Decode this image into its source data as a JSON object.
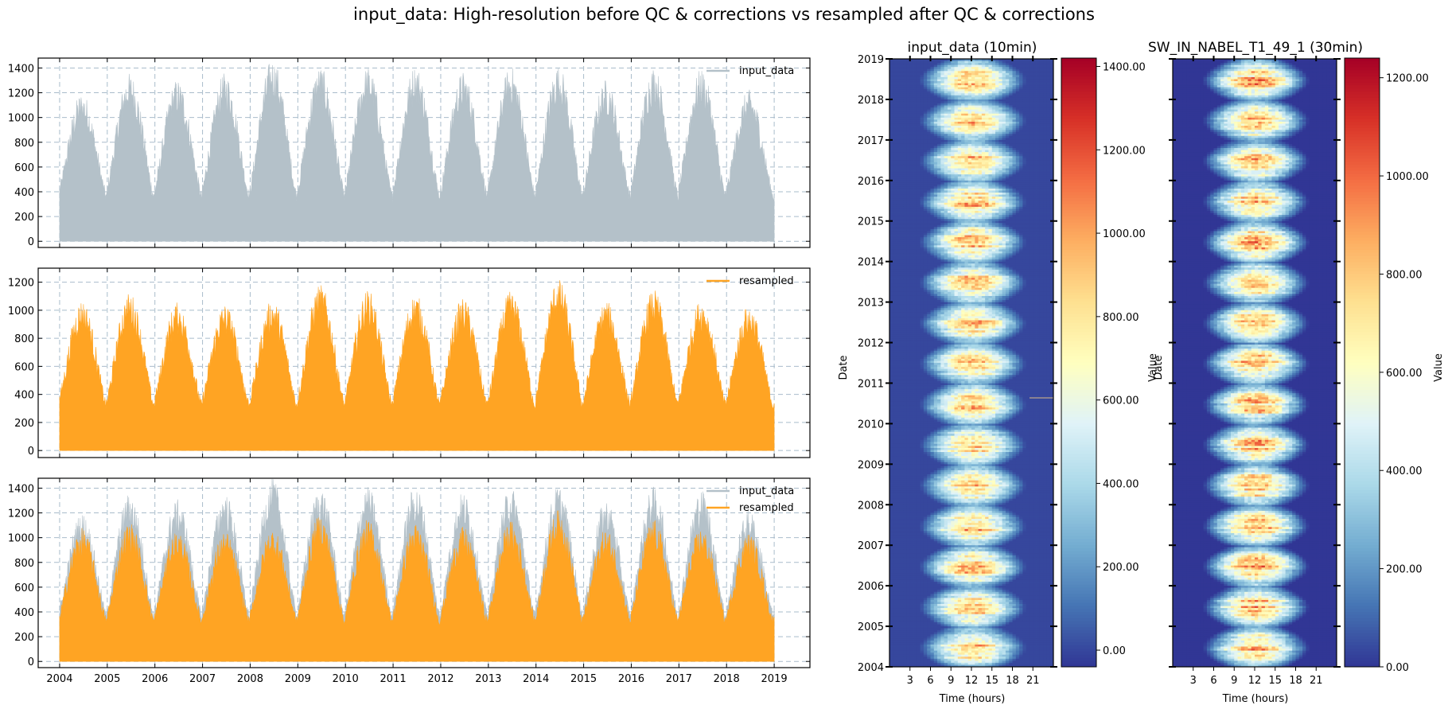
{
  "suptitle": "input_data: High-resolution before QC & corrections vs resampled after QC & corrections",
  "colors": {
    "input_data": "#b4c1c9",
    "resampled": "#ffa423",
    "grid": "#a9bccb",
    "colormap": [
      "#313695",
      "#4575b4",
      "#74add1",
      "#abd9e9",
      "#e0f3f8",
      "#ffffbf",
      "#fee090",
      "#fdae61",
      "#f46d43",
      "#d73027",
      "#a50026"
    ]
  },
  "chart_data": [
    {
      "type": "area",
      "panel": "top-timeseries",
      "title": "",
      "xlabel": "",
      "ylabel": "",
      "xlim": [
        2003.55,
        2019.75
      ],
      "ylim": [
        -50,
        1480
      ],
      "yticks": [
        0,
        200,
        400,
        600,
        800,
        1000,
        1200,
        1400
      ],
      "xticks": [
        2004,
        2005,
        2006,
        2007,
        2008,
        2009,
        2010,
        2011,
        2012,
        2013,
        2014,
        2015,
        2016,
        2017,
        2018,
        2019
      ],
      "grid": true,
      "legend_position": "top-right",
      "series": [
        {
          "name": "input_data",
          "kind": "raw",
          "annual_peaks": [
            1160,
            1310,
            1260,
            1310,
            1420,
            1360,
            1360,
            1370,
            1320,
            1360,
            1370,
            1260,
            1360,
            1340,
            1180
          ],
          "winter_floor": 390
        }
      ]
    },
    {
      "type": "area",
      "panel": "middle-timeseries",
      "title": "",
      "xlabel": "",
      "ylabel": "",
      "xlim": [
        2003.55,
        2019.75
      ],
      "ylim": [
        -50,
        1300
      ],
      "yticks": [
        0,
        200,
        400,
        600,
        800,
        1000,
        1200
      ],
      "xticks": [
        2004,
        2005,
        2006,
        2007,
        2008,
        2009,
        2010,
        2011,
        2012,
        2013,
        2014,
        2015,
        2016,
        2017,
        2018,
        2019
      ],
      "grid": true,
      "legend_position": "top-right",
      "series": [
        {
          "name": "resampled",
          "kind": "resampled",
          "annual_peaks": [
            1100,
            1150,
            1080,
            1070,
            1100,
            1210,
            1170,
            1140,
            1110,
            1160,
            1250,
            1090,
            1170,
            1100,
            1060
          ],
          "winter_floor": 370
        }
      ]
    },
    {
      "type": "area",
      "panel": "bottom-timeseries",
      "title": "",
      "xlabel": "",
      "ylabel": "",
      "xlim": [
        2003.55,
        2019.75
      ],
      "ylim": [
        -50,
        1480
      ],
      "yticks": [
        0,
        200,
        400,
        600,
        800,
        1000,
        1200,
        1400
      ],
      "xticks": [
        2004,
        2005,
        2006,
        2007,
        2008,
        2009,
        2010,
        2011,
        2012,
        2013,
        2014,
        2015,
        2016,
        2017,
        2018,
        2019
      ],
      "grid": true,
      "legend_position": "top-right",
      "series": [
        {
          "name": "input_data",
          "kind": "raw",
          "annual_peaks": [
            1160,
            1310,
            1260,
            1310,
            1420,
            1360,
            1360,
            1370,
            1320,
            1360,
            1370,
            1260,
            1360,
            1340,
            1180
          ],
          "winter_floor": 390
        },
        {
          "name": "resampled",
          "kind": "resampled",
          "annual_peaks": [
            1100,
            1150,
            1080,
            1070,
            1100,
            1210,
            1170,
            1140,
            1110,
            1160,
            1250,
            1090,
            1170,
            1100,
            1060
          ],
          "winter_floor": 370
        }
      ]
    },
    {
      "type": "heatmap",
      "panel": "heatmap-left",
      "title": "input_data (10min)",
      "xlabel": "Time (hours)",
      "ylabel": "Date",
      "xlim": [
        0,
        24
      ],
      "ylim": [
        2004,
        2019
      ],
      "xticks": [
        3,
        6,
        9,
        12,
        15,
        18,
        21
      ],
      "yticks": [
        2004,
        2005,
        2006,
        2007,
        2008,
        2009,
        2010,
        2011,
        2012,
        2013,
        2014,
        2015,
        2016,
        2017,
        2018,
        2019
      ],
      "colorbar": {
        "label": "Value",
        "vmin": -40,
        "vmax": 1420,
        "ticks": [
          "0.00",
          "200.00",
          "400.00",
          "600.00",
          "800.00",
          "1000.00",
          "1200.00",
          "1400.00"
        ],
        "tick_values": [
          0,
          200,
          400,
          600,
          800,
          1000,
          1200,
          1400
        ]
      },
      "summer_noon_peak": 1150
    },
    {
      "type": "heatmap",
      "panel": "heatmap-right",
      "title": "SW_IN_NABEL_T1_49_1 (30min)",
      "xlabel": "Time (hours)",
      "ylabel": "Date",
      "xlim": [
        0,
        24
      ],
      "ylim": [
        2004,
        2019
      ],
      "xticks": [
        3,
        6,
        9,
        12,
        15,
        18,
        21
      ],
      "yticks": [],
      "colorbar": {
        "label": "Value",
        "vmin": 0,
        "vmax": 1240,
        "ticks": [
          "0.00",
          "200.00",
          "400.00",
          "600.00",
          "800.00",
          "1000.00",
          "1200.00"
        ],
        "tick_values": [
          0,
          200,
          400,
          600,
          800,
          1000,
          1200
        ]
      },
      "summer_noon_peak": 1050
    }
  ]
}
